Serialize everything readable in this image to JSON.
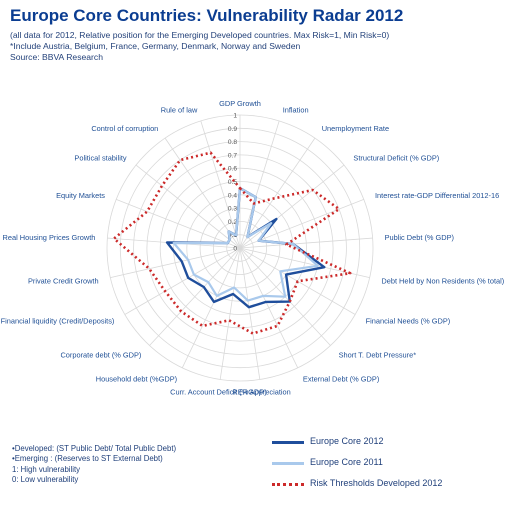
{
  "header": {
    "title": "Europe Core Countries: Vulnerability Radar 2012",
    "subtitle_1": "(all data for 2012, Relative position for the Emerging Developed countries. Max Risk=1, Min Risk=0)",
    "subtitle_2": "*Include Austria, Belgium, France, Germany, Denmark, Norway and Sweden",
    "source": "Source: BBVA Research"
  },
  "chart_data": {
    "type": "radar",
    "axes": [
      "GDP Growth",
      "Inflation",
      "Unemployment Rate",
      "Structural Deficit (% GDP)",
      "Interest rate-GDP Differential 2012-16",
      "Public Debt (% GDP)",
      "Debt Held by Non Residents (% total)",
      "Financial Needs (% GDP)",
      "Short T. Debt Pressure*",
      "External Debt (% GDP)",
      "RER Appreciation",
      "Curr. Account Deficit (%GDP)",
      "Household debt (%GDP)",
      "Corporate debt (% GDP)",
      "Financial liquidity (Credit/Deposits)",
      "Private Credit Growth",
      "Real Housing Prices Growth",
      "Equity Markets",
      "Political stability",
      "Control of corruption",
      "Rule of law"
    ],
    "tick_labels": [
      "0",
      "0.1",
      "0.2",
      "0.3",
      "0.4",
      "0.5",
      "0.6",
      "0.7",
      "0.8",
      "0.9",
      "1"
    ],
    "rlim": [
      0,
      1
    ],
    "series": [
      {
        "name": "Europe Core 2012",
        "style": "solid",
        "color": "#1f4e9c",
        "values": [
          0.45,
          0.4,
          0.1,
          0.35,
          0.15,
          0.4,
          0.65,
          0.4,
          0.55,
          0.45,
          0.45,
          0.35,
          0.45,
          0.4,
          0.45,
          0.45,
          0.55,
          0.1,
          0.1,
          0.15,
          0.1
        ]
      },
      {
        "name": "Europe Core 2011",
        "style": "solid",
        "color": "#a9c9ec",
        "values": [
          0.45,
          0.4,
          0.1,
          0.3,
          0.15,
          0.4,
          0.6,
          0.35,
          0.5,
          0.4,
          0.4,
          0.3,
          0.4,
          0.35,
          0.4,
          0.4,
          0.5,
          0.1,
          0.1,
          0.15,
          0.1
        ]
      },
      {
        "name": "Risk Thresholds Developed 2012",
        "style": "dotted",
        "color": "#cc2a2a",
        "values": [
          0.45,
          0.35,
          0.45,
          0.7,
          0.8,
          0.35,
          0.85,
          0.5,
          0.55,
          0.65,
          0.65,
          0.55,
          0.65,
          0.65,
          0.65,
          0.7,
          0.95,
          0.75,
          0.75,
          0.8,
          0.75
        ]
      }
    ],
    "grid": true,
    "legend_position": "bottom-right"
  },
  "notes": [
    "•Developed: (ST Public Debt/ Total Public Debt)",
    "•Emerging : (Reserves to ST External Debt)",
    "1: High vulnerability",
    "0: Low vulnerability"
  ]
}
